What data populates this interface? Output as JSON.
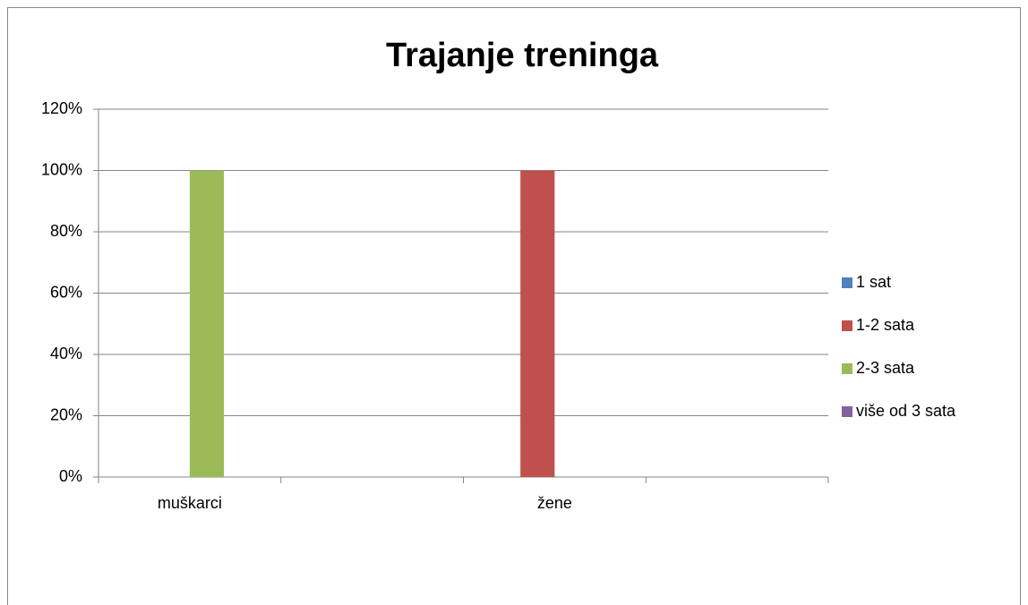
{
  "chart_data": {
    "type": "bar",
    "title": "Trajanje treninga",
    "categories": [
      "muškarci",
      null,
      "žene",
      null
    ],
    "series": [
      {
        "name": "1 sat",
        "color": "#4f81bd",
        "values": [
          0,
          null,
          0,
          null
        ]
      },
      {
        "name": "1-2 sata",
        "color": "#c0504d",
        "values": [
          0,
          null,
          100,
          null
        ]
      },
      {
        "name": "2-3 sata",
        "color": "#9bbb59",
        "values": [
          100,
          null,
          0,
          null
        ]
      },
      {
        "name": "više od 3 sata",
        "color": "#8064a2",
        "values": [
          0,
          null,
          0,
          null
        ]
      }
    ],
    "ylim": [
      0,
      120
    ],
    "yticks": [
      {
        "value": 0,
        "label": "0%"
      },
      {
        "value": 20,
        "label": "20%"
      },
      {
        "value": 40,
        "label": "40%"
      },
      {
        "value": 60,
        "label": "60%"
      },
      {
        "value": 80,
        "label": "80%"
      },
      {
        "value": 100,
        "label": "100%"
      },
      {
        "value": 120,
        "label": "120%"
      }
    ],
    "grid": true,
    "legend": "right"
  }
}
